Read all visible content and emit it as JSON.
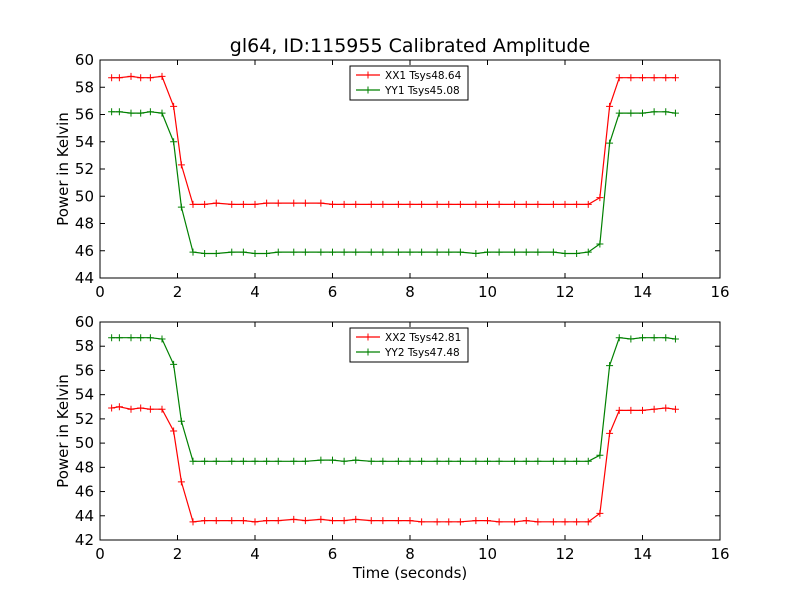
{
  "title": "gl64, ID:115955 Calibrated Amplitude",
  "chart_data": [
    {
      "type": "line",
      "title": "gl64, ID:115955 Calibrated Amplitude",
      "xlabel": "",
      "ylabel": "Power in Kelvin",
      "xlim": [
        0,
        16
      ],
      "ylim": [
        44,
        60
      ],
      "xticks": [
        0,
        2,
        4,
        6,
        8,
        10,
        12,
        14,
        16
      ],
      "yticks": [
        44,
        46,
        48,
        50,
        52,
        54,
        56,
        58,
        60
      ],
      "legend_position": "top-center",
      "grid": false,
      "series": [
        {
          "name": "XX1 Tsys48.64",
          "color": "#ff0000",
          "x": [
            0.3,
            0.5,
            0.8,
            1.05,
            1.3,
            1.6,
            1.9,
            2.1,
            2.4,
            2.7,
            3.0,
            3.4,
            3.7,
            4.0,
            4.3,
            4.6,
            5.0,
            5.3,
            5.7,
            6.0,
            6.3,
            6.6,
            7.0,
            7.3,
            7.7,
            8.0,
            8.3,
            8.7,
            9.0,
            9.3,
            9.7,
            10.0,
            10.3,
            10.7,
            11.0,
            11.3,
            11.7,
            12.0,
            12.3,
            12.6,
            12.9,
            13.15,
            13.4,
            13.7,
            14.0,
            14.3,
            14.6,
            14.85
          ],
          "values": [
            58.7,
            58.7,
            58.8,
            58.7,
            58.7,
            58.8,
            56.6,
            52.3,
            49.4,
            49.4,
            49.5,
            49.4,
            49.4,
            49.4,
            49.5,
            49.5,
            49.5,
            49.5,
            49.5,
            49.4,
            49.4,
            49.4,
            49.4,
            49.4,
            49.4,
            49.4,
            49.4,
            49.4,
            49.4,
            49.4,
            49.4,
            49.4,
            49.4,
            49.4,
            49.4,
            49.4,
            49.4,
            49.4,
            49.4,
            49.4,
            49.9,
            56.6,
            58.7,
            58.7,
            58.7,
            58.7,
            58.7,
            58.7
          ]
        },
        {
          "name": "YY1 Tsys45.08",
          "color": "#008000",
          "x": [
            0.3,
            0.5,
            0.8,
            1.05,
            1.3,
            1.6,
            1.9,
            2.1,
            2.4,
            2.7,
            3.0,
            3.4,
            3.7,
            4.0,
            4.3,
            4.6,
            5.0,
            5.3,
            5.7,
            6.0,
            6.3,
            6.6,
            7.0,
            7.3,
            7.7,
            8.0,
            8.3,
            8.7,
            9.0,
            9.3,
            9.7,
            10.0,
            10.3,
            10.7,
            11.0,
            11.3,
            11.7,
            12.0,
            12.3,
            12.6,
            12.9,
            13.15,
            13.4,
            13.7,
            14.0,
            14.3,
            14.6,
            14.85
          ],
          "values": [
            56.2,
            56.2,
            56.1,
            56.1,
            56.2,
            56.1,
            54.0,
            49.2,
            45.9,
            45.8,
            45.8,
            45.9,
            45.9,
            45.8,
            45.8,
            45.9,
            45.9,
            45.9,
            45.9,
            45.9,
            45.9,
            45.9,
            45.9,
            45.9,
            45.9,
            45.9,
            45.9,
            45.9,
            45.9,
            45.9,
            45.8,
            45.9,
            45.9,
            45.9,
            45.9,
            45.9,
            45.9,
            45.8,
            45.8,
            45.9,
            46.5,
            53.9,
            56.1,
            56.1,
            56.1,
            56.2,
            56.2,
            56.1
          ]
        }
      ]
    },
    {
      "type": "line",
      "title": "",
      "xlabel": "Time (seconds)",
      "ylabel": "Power in Kelvin",
      "xlim": [
        0,
        16
      ],
      "ylim": [
        42,
        60
      ],
      "xticks": [
        0,
        2,
        4,
        6,
        8,
        10,
        12,
        14,
        16
      ],
      "yticks": [
        42,
        44,
        46,
        48,
        50,
        52,
        54,
        56,
        58,
        60
      ],
      "legend_position": "top-center",
      "grid": false,
      "series": [
        {
          "name": "XX2 Tsys42.81",
          "color": "#ff0000",
          "x": [
            0.3,
            0.5,
            0.8,
            1.05,
            1.3,
            1.6,
            1.9,
            2.1,
            2.4,
            2.7,
            3.0,
            3.4,
            3.7,
            4.0,
            4.3,
            4.6,
            5.0,
            5.3,
            5.7,
            6.0,
            6.3,
            6.6,
            7.0,
            7.3,
            7.7,
            8.0,
            8.3,
            8.7,
            9.0,
            9.3,
            9.7,
            10.0,
            10.3,
            10.7,
            11.0,
            11.3,
            11.7,
            12.0,
            12.3,
            12.6,
            12.9,
            13.15,
            13.4,
            13.7,
            14.0,
            14.3,
            14.6,
            14.85
          ],
          "values": [
            52.9,
            53.0,
            52.8,
            52.9,
            52.8,
            52.8,
            51.0,
            46.8,
            43.5,
            43.6,
            43.6,
            43.6,
            43.6,
            43.5,
            43.6,
            43.6,
            43.7,
            43.6,
            43.7,
            43.6,
            43.6,
            43.7,
            43.6,
            43.6,
            43.6,
            43.6,
            43.5,
            43.5,
            43.5,
            43.5,
            43.6,
            43.6,
            43.5,
            43.5,
            43.6,
            43.5,
            43.5,
            43.5,
            43.5,
            43.5,
            44.2,
            50.8,
            52.7,
            52.7,
            52.7,
            52.8,
            52.9,
            52.8
          ]
        },
        {
          "name": "YY2 Tsys47.48",
          "color": "#008000",
          "x": [
            0.3,
            0.5,
            0.8,
            1.05,
            1.3,
            1.6,
            1.9,
            2.1,
            2.4,
            2.7,
            3.0,
            3.4,
            3.7,
            4.0,
            4.3,
            4.6,
            5.0,
            5.3,
            5.7,
            6.0,
            6.3,
            6.6,
            7.0,
            7.3,
            7.7,
            8.0,
            8.3,
            8.7,
            9.0,
            9.3,
            9.7,
            10.0,
            10.3,
            10.7,
            11.0,
            11.3,
            11.7,
            12.0,
            12.3,
            12.6,
            12.9,
            13.15,
            13.4,
            13.7,
            14.0,
            14.3,
            14.6,
            14.85
          ],
          "values": [
            58.7,
            58.7,
            58.7,
            58.7,
            58.7,
            58.6,
            56.5,
            51.8,
            48.5,
            48.5,
            48.5,
            48.5,
            48.5,
            48.5,
            48.5,
            48.5,
            48.5,
            48.5,
            48.6,
            48.6,
            48.5,
            48.6,
            48.5,
            48.5,
            48.5,
            48.5,
            48.5,
            48.5,
            48.5,
            48.5,
            48.5,
            48.5,
            48.5,
            48.5,
            48.5,
            48.5,
            48.5,
            48.5,
            48.5,
            48.5,
            49.0,
            56.4,
            58.7,
            58.6,
            58.7,
            58.7,
            58.7,
            58.6
          ]
        }
      ]
    }
  ]
}
